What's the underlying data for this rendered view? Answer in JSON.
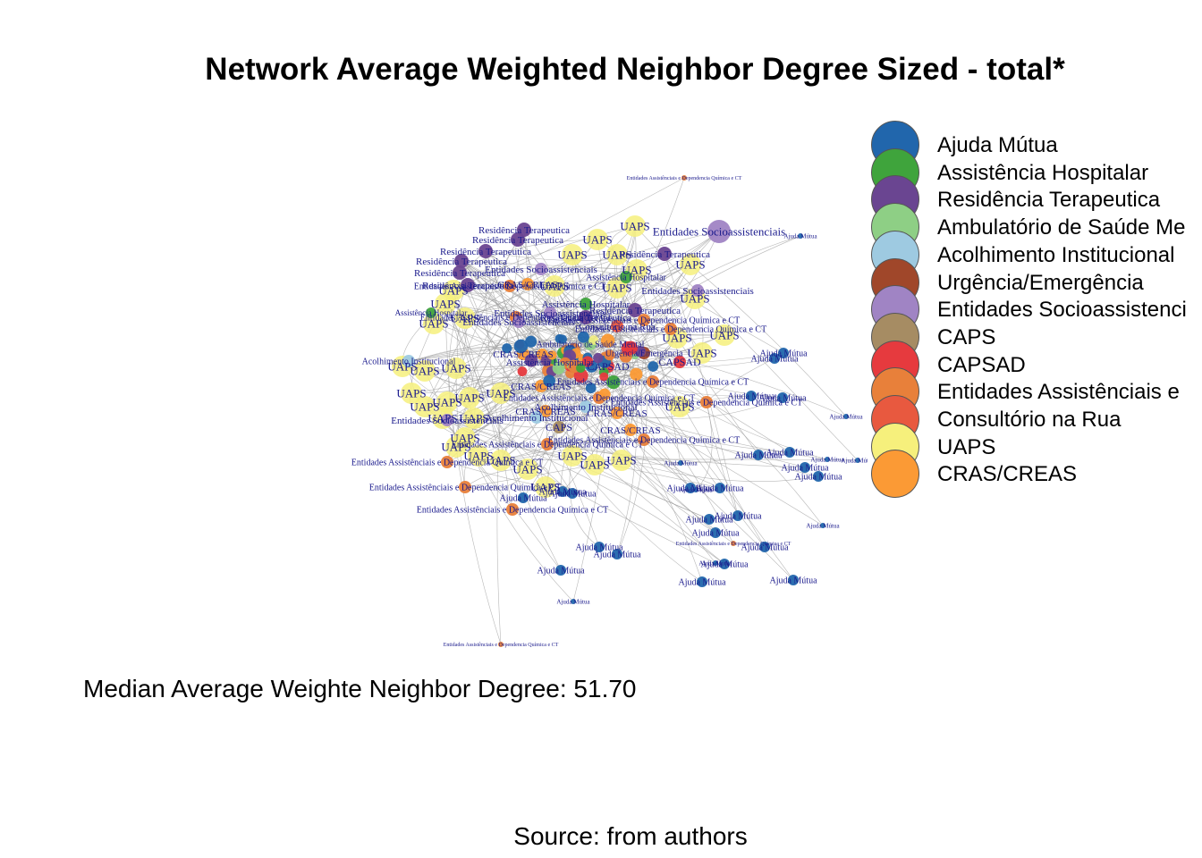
{
  "title": "Network Average Weighted Neighbor Degree Sized - total*",
  "legend": [
    {
      "label": "Ajuda Mútua",
      "color": "#2166ac"
    },
    {
      "label": "Assistência Hospitalar",
      "color": "#3fa43c"
    },
    {
      "label": "Residência Terapeutica",
      "color": "#6a4591"
    },
    {
      "label": "Ambulatório de Saúde Me",
      "color": "#8ecf85"
    },
    {
      "label": "Acolhimento Institucional",
      "color": "#9ecae1"
    },
    {
      "label": "Urgência/Emergência",
      "color": "#a0472a"
    },
    {
      "label": "Entidades Socioassistenci",
      "color": "#a084c4"
    },
    {
      "label": "CAPS",
      "color": "#a68c63"
    },
    {
      "label": "CAPSAD",
      "color": "#e63a3e"
    },
    {
      "label": "Entidades Assistênciais e",
      "color": "#e8803a"
    },
    {
      "label": "Consultório na Rua",
      "color": "#e8593f"
    },
    {
      "label": "UAPS",
      "color": "#f6f07c"
    },
    {
      "label": "CRAS/CREAS",
      "color": "#fb9a35"
    }
  ],
  "median_text": "Median Average Weighte Neighbor Degree: 51.70",
  "source_text": "Source: from authors",
  "node_labels": {
    "ajuda": "Ajuda Mútua",
    "uaps": "UAPS",
    "residencia": "Residência Terapeutica",
    "entidades_ct": "Entidades Assistênciais e Dependencia Química e CT",
    "entidades_socio": "Entidades Socioassistenciais",
    "cras": "CRAS/CREAS",
    "acolhimento": "Acolhimento Institucional",
    "hospitalar": "Assistência Hospitalar",
    "ambulatorio": "Ambulatório de Saúde Mental",
    "caps": "CAPS",
    "capsad": "CAPSAD",
    "consultorio": "Consultório na Rua",
    "urgencia": "Urgência/Emergência"
  }
}
